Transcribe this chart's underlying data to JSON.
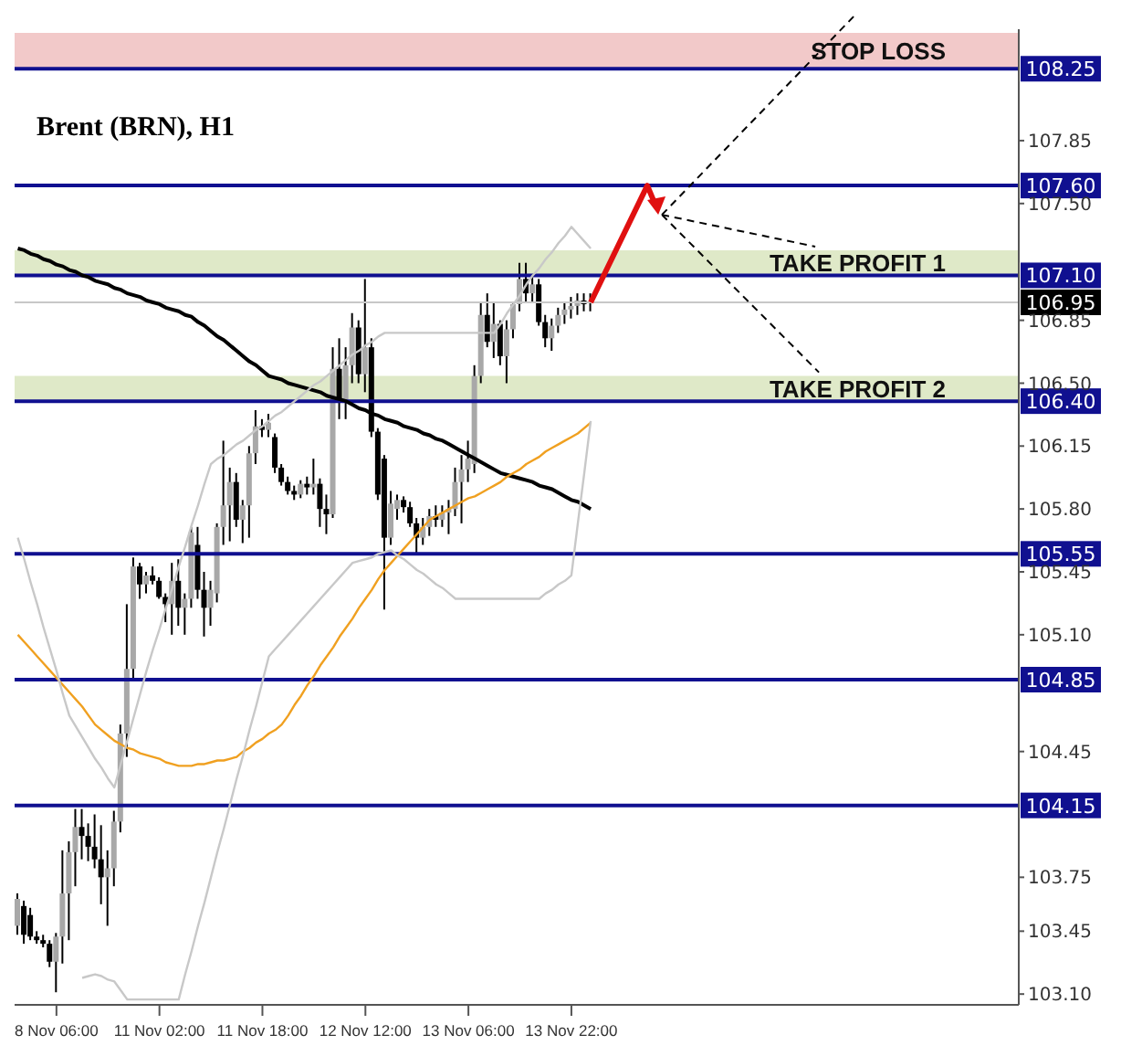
{
  "chart_data": {
    "type": "candlestick",
    "title": "Brent (BRN), H1",
    "categories": [
      null,
      null,
      null,
      null,
      null,
      null,
      "8 Nov 06:00",
      null,
      null,
      null,
      null,
      null,
      null,
      null,
      null,
      null,
      null,
      null,
      null,
      null,
      null,
      null,
      "11 Nov 02:00",
      null,
      null,
      null,
      null,
      null,
      null,
      null,
      null,
      null,
      null,
      null,
      null,
      null,
      null,
      null,
      "11 Nov 18:00",
      null,
      null,
      null,
      null,
      null,
      null,
      null,
      null,
      null,
      null,
      null,
      null,
      null,
      null,
      null,
      "12 Nov 12:00",
      null,
      null,
      null,
      null,
      null,
      null,
      null,
      null,
      null,
      null,
      null,
      null,
      null,
      null,
      null,
      "13 Nov 06:00",
      null,
      null,
      null,
      null,
      null,
      null,
      null,
      null,
      null,
      null,
      null,
      null,
      null,
      null,
      null,
      "13 Nov 22:00",
      null,
      null,
      null,
      null,
      null,
      null,
      null,
      null,
      null,
      null,
      null,
      null,
      null,
      null,
      null,
      null,
      null,
      null,
      null,
      null,
      null,
      null,
      null,
      null,
      null,
      null,
      null,
      null,
      null,
      null,
      null,
      null,
      null,
      null,
      null,
      null,
      null,
      null,
      null,
      null,
      null,
      null,
      null,
      null,
      null,
      null,
      null,
      null,
      null,
      null,
      null,
      null,
      null,
      null,
      null,
      null,
      null,
      null,
      null,
      null,
      null,
      null,
      null,
      null,
      null,
      null,
      null,
      null,
      null
    ],
    "ohlc": [
      [
        103.48,
        103.66,
        103.43,
        103.63
      ],
      [
        103.59,
        103.62,
        103.38,
        103.43
      ],
      [
        103.54,
        103.58,
        103.4,
        103.42
      ],
      [
        103.42,
        103.45,
        103.38,
        103.4
      ],
      [
        103.4,
        103.43,
        103.36,
        103.38
      ],
      [
        103.38,
        103.4,
        103.25,
        103.28
      ],
      [
        103.28,
        103.44,
        103.11,
        103.42
      ],
      [
        103.42,
        103.9,
        103.27,
        103.66
      ],
      [
        103.66,
        103.95,
        103.4,
        103.89
      ],
      [
        103.89,
        104.13,
        103.7,
        104.03
      ],
      [
        104.03,
        104.13,
        103.85,
        103.98
      ],
      [
        103.98,
        104.05,
        103.84,
        103.92
      ],
      [
        103.92,
        104.1,
        103.8,
        103.85
      ],
      [
        103.85,
        104.04,
        103.6,
        103.75
      ],
      [
        103.75,
        103.9,
        103.48,
        103.8
      ],
      [
        103.8,
        104.12,
        103.7,
        104.06
      ],
      [
        104.06,
        104.6,
        104,
        104.55
      ],
      [
        104.55,
        105.27,
        104.42,
        104.91
      ],
      [
        104.91,
        105.53,
        104.86,
        105.48
      ],
      [
        105.48,
        105.5,
        105.3,
        105.38
      ],
      [
        105.38,
        105.45,
        105.33,
        105.43
      ],
      [
        105.43,
        105.48,
        105.38,
        105.4
      ],
      [
        105.4,
        105.42,
        105.3,
        105.31
      ],
      [
        105.31,
        105.33,
        105.17,
        105.27
      ],
      [
        105.27,
        105.5,
        105.1,
        105.4
      ],
      [
        105.4,
        105.52,
        105.15,
        105.25
      ],
      [
        105.25,
        105.33,
        105.1,
        105.3
      ],
      [
        105.3,
        105.7,
        105.25,
        105.67
      ],
      [
        105.6,
        105.7,
        105.3,
        105.35
      ],
      [
        105.35,
        105.45,
        105.09,
        105.25
      ],
      [
        105.25,
        105.4,
        105.15,
        105.35
      ],
      [
        105.33,
        105.72,
        105.28,
        105.7
      ],
      [
        105.7,
        106.18,
        105.6,
        105.82
      ],
      [
        105.82,
        106.03,
        105.62,
        105.95
      ],
      [
        105.95,
        106,
        105.7,
        105.74
      ],
      [
        105.74,
        105.85,
        105.61,
        105.82
      ],
      [
        105.82,
        106.15,
        105.64,
        106.11
      ],
      [
        106.11,
        106.35,
        106.05,
        106.26
      ],
      [
        106.26,
        106.3,
        106.2,
        106.24
      ],
      [
        106.24,
        106.33,
        106.2,
        106.28
      ],
      [
        106.2,
        106.22,
        106,
        106.03
      ],
      [
        106.03,
        106.05,
        105.93,
        105.95
      ],
      [
        105.95,
        105.98,
        105.88,
        105.9
      ],
      [
        105.9,
        105.93,
        105.85,
        105.88
      ],
      [
        105.88,
        105.96,
        105.86,
        105.94
      ],
      [
        105.94,
        105.98,
        105.88,
        105.92
      ],
      [
        105.92,
        106.08,
        105.88,
        105.94
      ],
      [
        105.94,
        105.97,
        105.7,
        105.8
      ],
      [
        105.8,
        105.88,
        105.66,
        105.77
      ],
      [
        105.77,
        106.7,
        105.75,
        106.58
      ],
      [
        106.58,
        106.75,
        106.3,
        106.4
      ],
      [
        106.4,
        106.7,
        106.3,
        106.6
      ],
      [
        106.6,
        106.89,
        106.5,
        106.81
      ],
      [
        106.81,
        106.85,
        106.5,
        106.55
      ],
      [
        106.55,
        107.08,
        106.45,
        106.7
      ],
      [
        106.7,
        106.75,
        106.2,
        106.23
      ],
      [
        106.23,
        106.25,
        105.85,
        105.88
      ],
      [
        106.08,
        106.1,
        105.24,
        105.64
      ],
      [
        105.64,
        105.9,
        105.6,
        105.83
      ],
      [
        105.8,
        105.88,
        105.74,
        105.85
      ],
      [
        105.85,
        105.87,
        105.78,
        105.81
      ],
      [
        105.81,
        105.84,
        105.7,
        105.72
      ],
      [
        105.72,
        105.75,
        105.55,
        105.64
      ],
      [
        105.64,
        105.75,
        105.6,
        105.7
      ],
      [
        105.7,
        105.8,
        105.65,
        105.76
      ],
      [
        105.76,
        105.82,
        105.7,
        105.74
      ],
      [
        105.74,
        105.82,
        105.7,
        105.78
      ],
      [
        105.78,
        105.85,
        105.66,
        105.8
      ],
      [
        105.8,
        106.03,
        105.76,
        105.95
      ],
      [
        105.95,
        106.1,
        105.72,
        106.02
      ],
      [
        106.02,
        106.18,
        105.95,
        106.08
      ],
      [
        106.05,
        106.6,
        106,
        106.54
      ],
      [
        106.54,
        106.95,
        106.5,
        106.88
      ],
      [
        106.88,
        107,
        106.7,
        106.73
      ],
      [
        106.73,
        106.95,
        106.64,
        106.83
      ],
      [
        106.83,
        106.85,
        106.6,
        106.65
      ],
      [
        106.65,
        106.85,
        106.5,
        106.8
      ],
      [
        106.8,
        106.95,
        106.75,
        106.94
      ],
      [
        106.94,
        107.17,
        106.9,
        107.08
      ],
      [
        107.08,
        107.17,
        106.95,
        107
      ],
      [
        107,
        107.1,
        106.95,
        107.05
      ],
      [
        107.05,
        107.08,
        106.82,
        106.84
      ],
      [
        106.84,
        106.88,
        106.7,
        106.75
      ],
      [
        106.75,
        106.86,
        106.68,
        106.82
      ],
      [
        106.82,
        106.92,
        106.78,
        106.88
      ],
      [
        106.88,
        106.95,
        106.83,
        106.91
      ],
      [
        106.91,
        106.98,
        106.86,
        106.93
      ],
      [
        106.93,
        107,
        106.88,
        106.96
      ],
      [
        106.96,
        107,
        106.9,
        106.94
      ],
      [
        106.94,
        107,
        106.9,
        106.95
      ],
      null,
      null,
      null,
      null,
      null,
      null,
      null,
      null,
      null,
      null,
      null,
      null,
      null,
      null,
      null,
      null,
      null,
      null,
      null,
      null,
      null,
      null,
      null,
      null,
      null,
      null,
      null,
      null,
      null,
      null,
      null,
      null,
      null,
      null,
      null,
      null,
      null,
      null,
      null,
      null,
      null,
      null,
      null,
      null,
      null,
      null,
      null,
      null,
      null,
      null,
      null,
      null,
      null,
      null,
      null,
      null,
      null,
      null,
      null,
      null,
      null,
      null,
      null,
      null,
      null,
      null
    ],
    "series": [
      {
        "type": "line",
        "color": "#000000",
        "values": [
          107.25,
          107.24,
          107.22,
          107.21,
          107.19,
          107.18,
          107.16,
          107.15,
          107.13,
          107.12,
          107.1,
          107.09,
          107.07,
          107.06,
          107.05,
          107.03,
          107.02,
          107,
          106.99,
          106.98,
          106.96,
          106.95,
          106.94,
          106.92,
          106.91,
          106.9,
          106.88,
          106.87,
          106.84,
          106.82,
          106.79,
          106.76,
          106.74,
          106.71,
          106.68,
          106.65,
          106.62,
          106.6,
          106.57,
          106.54,
          106.53,
          106.52,
          106.5,
          106.49,
          106.48,
          106.47,
          106.46,
          106.45,
          106.43,
          106.42,
          106.41,
          106.4,
          106.38,
          106.36,
          106.35,
          106.33,
          106.32,
          106.3,
          106.29,
          106.28,
          106.26,
          106.25,
          106.24,
          106.22,
          106.21,
          106.19,
          106.18,
          106.16,
          106.14,
          106.12,
          106.1,
          106.08,
          106.06,
          106.04,
          106.02,
          106,
          105.99,
          105.98,
          105.97,
          105.96,
          105.95,
          105.93,
          105.92,
          105.91,
          105.89,
          105.87,
          105.85,
          105.84,
          105.82,
          105.8,
          null,
          null,
          null,
          null,
          null,
          null,
          null,
          null,
          null,
          null,
          null,
          null,
          null,
          null,
          null,
          null,
          null,
          null,
          null,
          null,
          null,
          null,
          null,
          null,
          null,
          null,
          null,
          null,
          null,
          null,
          null,
          null,
          null,
          null,
          null,
          null,
          null,
          null,
          null,
          null,
          null,
          null,
          null,
          null,
          null,
          null,
          null,
          null,
          null,
          null,
          null,
          null,
          null,
          null,
          null,
          null,
          null,
          null,
          null,
          null,
          null,
          null,
          null,
          null,
          null,
          null
        ]
      },
      {
        "type": "line",
        "color": "#f0a020",
        "values": [
          105.1,
          105.06,
          105.02,
          104.98,
          104.94,
          104.9,
          104.86,
          104.82,
          104.78,
          104.74,
          104.7,
          104.65,
          104.6,
          104.57,
          104.54,
          104.51,
          104.49,
          104.47,
          104.46,
          104.44,
          104.43,
          104.42,
          104.41,
          104.39,
          104.38,
          104.37,
          104.37,
          104.37,
          104.38,
          104.38,
          104.39,
          104.4,
          104.4,
          104.41,
          104.42,
          104.45,
          104.47,
          104.5,
          104.52,
          104.55,
          104.57,
          104.6,
          104.65,
          104.71,
          104.76,
          104.82,
          104.87,
          104.93,
          104.98,
          105.03,
          105.09,
          105.14,
          105.19,
          105.25,
          105.3,
          105.35,
          105.41,
          105.46,
          105.5,
          105.54,
          105.58,
          105.62,
          105.66,
          105.7,
          105.74,
          105.76,
          105.78,
          105.8,
          105.82,
          105.84,
          105.86,
          105.87,
          105.89,
          105.91,
          105.93,
          105.95,
          105.98,
          106,
          106.02,
          106.05,
          106.07,
          106.09,
          106.12,
          106.14,
          106.16,
          106.18,
          106.2,
          106.22,
          106.25,
          106.28,
          null,
          null,
          null,
          null,
          null,
          null,
          null,
          null,
          null,
          null,
          null,
          null,
          null,
          null,
          null,
          null,
          null,
          null,
          null,
          null,
          null,
          null,
          null,
          null,
          null,
          null,
          null,
          null,
          null,
          null,
          null,
          null,
          null,
          null,
          null,
          null,
          null,
          null,
          null,
          null,
          null,
          null,
          null,
          null,
          null,
          null,
          null,
          null,
          null,
          null,
          null,
          null,
          null,
          null,
          null,
          null,
          null,
          null,
          null,
          null,
          null,
          null,
          null,
          null,
          null,
          null
        ]
      },
      {
        "type": "line",
        "color": "#c8c8c8",
        "values": [
          105.64,
          105.52,
          105.39,
          105.27,
          105.14,
          105.02,
          104.9,
          104.77,
          104.65,
          104.59,
          104.53,
          104.47,
          104.41,
          104.36,
          104.3,
          104.25,
          104.38,
          104.51,
          104.64,
          104.77,
          104.9,
          105.02,
          105.13,
          105.25,
          105.36,
          105.48,
          105.59,
          105.71,
          105.82,
          105.94,
          106.05,
          106.08,
          106.1,
          106.13,
          106.16,
          106.18,
          106.21,
          106.24,
          106.26,
          106.29,
          106.32,
          106.34,
          106.37,
          106.4,
          106.43,
          106.46,
          106.49,
          106.51,
          106.54,
          106.57,
          106.6,
          106.63,
          106.66,
          106.68,
          106.71,
          106.73,
          106.76,
          106.78,
          106.78,
          106.78,
          106.78,
          106.78,
          106.78,
          106.78,
          106.78,
          106.78,
          106.78,
          106.78,
          106.78,
          106.78,
          106.78,
          106.78,
          106.78,
          106.78,
          106.78,
          106.83,
          106.89,
          106.94,
          106.99,
          107.05,
          107.1,
          107.14,
          107.19,
          107.23,
          107.28,
          107.32,
          107.37,
          107.33,
          107.29,
          107.25,
          null,
          null,
          null,
          null,
          null,
          null,
          null,
          null,
          null,
          null,
          null,
          null,
          null,
          null,
          null,
          null,
          null,
          null,
          null,
          null,
          null,
          null,
          null,
          null,
          null,
          null,
          null,
          null,
          null,
          null,
          null,
          null,
          null,
          null,
          null,
          null,
          null,
          null,
          null,
          null,
          null,
          null,
          null,
          null,
          null,
          null,
          null,
          null,
          null,
          null,
          null,
          null,
          null,
          null,
          null,
          null,
          null,
          null,
          null,
          null,
          null,
          null,
          null,
          null,
          null,
          null
        ]
      },
      {
        "type": "line",
        "color": "#c8c8c8",
        "values": [
          null,
          null,
          null,
          null,
          null,
          null,
          null,
          null,
          null,
          null,
          103.19,
          103.2,
          103.21,
          103.2,
          103.18,
          103.17,
          103.12,
          103.07,
          103.07,
          103.07,
          103.07,
          103.07,
          103.07,
          103.07,
          103.07,
          103.07,
          103.21,
          103.34,
          103.48,
          103.61,
          103.75,
          103.89,
          104.02,
          104.16,
          104.3,
          104.43,
          104.57,
          104.7,
          104.84,
          104.98,
          105.02,
          105.06,
          105.1,
          105.14,
          105.18,
          105.22,
          105.26,
          105.3,
          105.34,
          105.38,
          105.42,
          105.46,
          105.5,
          105.51,
          105.52,
          105.53,
          105.55,
          105.56,
          105.57,
          105.54,
          105.52,
          105.49,
          105.46,
          105.44,
          105.41,
          105.38,
          105.36,
          105.33,
          105.3,
          105.3,
          105.3,
          105.3,
          105.3,
          105.3,
          105.3,
          105.3,
          105.3,
          105.3,
          105.3,
          105.3,
          105.3,
          105.3,
          105.33,
          105.35,
          105.38,
          105.4,
          105.43,
          105.72,
          106,
          106.29,
          null,
          null,
          null,
          null,
          null,
          null,
          null,
          null,
          null,
          null,
          null,
          null,
          null,
          null,
          null,
          null,
          null,
          null,
          null,
          null,
          null,
          null,
          null,
          null,
          null,
          null,
          null,
          null,
          null,
          null,
          null,
          null,
          null,
          null,
          null,
          null,
          null,
          null,
          null,
          null,
          null,
          null,
          null,
          null,
          null,
          null,
          null,
          null,
          null,
          null,
          null,
          null,
          null,
          null,
          null,
          null,
          null,
          null,
          null,
          null,
          null,
          null,
          null,
          null,
          null,
          null
        ]
      }
    ],
    "ylim": [
      103.04,
      108.47
    ],
    "yticks": [
      {
        "value": 103.1,
        "label": "103.10"
      },
      103.45,
      103.75,
      104.45,
      {
        "value": 105.1,
        "label": "105.10"
      },
      105.45,
      {
        "value": 105.8,
        "label": "105.80"
      },
      106.15,
      {
        "value": 106.5,
        "label": "106.50"
      },
      106.85,
      {
        "value": 107.5,
        "label": "107.50"
      },
      107.85
    ],
    "ref_lines": [
      {
        "axis": "y",
        "value": 108.25,
        "label": "108.25",
        "color": "#101090"
      },
      {
        "axis": "y",
        "value": 107.6,
        "label": "107.60",
        "color": "#101090"
      },
      {
        "axis": "y",
        "value": 107.1,
        "label": "107.10",
        "color": "#101090"
      },
      {
        "axis": "y",
        "value": 106.95,
        "label": "106.95",
        "color": "#c8c8c8"
      },
      {
        "axis": "y",
        "value": 106.4,
        "label": "106.40",
        "color": "#101090"
      },
      {
        "axis": "y",
        "value": 105.55,
        "label": "105.55",
        "color": "#101090"
      },
      {
        "axis": "y",
        "value": 104.85,
        "label": "104.85",
        "color": "#101090"
      },
      {
        "axis": "y",
        "value": 104.15,
        "label": "104.15",
        "color": "#101090"
      }
    ],
    "bands": [
      {
        "axis": "y",
        "from": 108.25,
        "to": 108.45,
        "label": "STOP LOSS",
        "color": "#f2c9c9"
      },
      {
        "axis": "y",
        "from": 107.1,
        "to": 107.24,
        "label": "TAKE PROFIT 1",
        "color": "#dfe9c8"
      },
      {
        "axis": "y",
        "from": 106.4,
        "to": 106.54,
        "label": "TAKE PROFIT 2",
        "color": "#dfe9c8"
      }
    ]
  }
}
